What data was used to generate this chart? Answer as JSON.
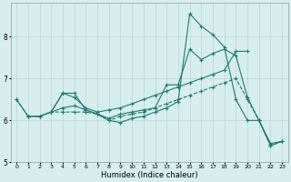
{
  "xlabel": "Humidex (Indice chaleur)",
  "bg_color": "#d6eeee",
  "line_color": "#1e7a70",
  "grid_color": "#b8d4d4",
  "xlim": [
    -0.5,
    23.5
  ],
  "ylim": [
    5.0,
    8.8
  ],
  "yticks": [
    5,
    6,
    7,
    8
  ],
  "xticks": [
    0,
    1,
    2,
    3,
    4,
    5,
    6,
    7,
    8,
    9,
    10,
    11,
    12,
    13,
    14,
    15,
    16,
    17,
    18,
    19,
    20,
    21,
    22,
    23
  ],
  "line1_x": [
    0,
    1,
    2,
    3,
    4,
    5,
    6,
    7,
    8,
    9,
    10,
    11,
    12,
    13,
    14,
    15,
    16,
    17,
    18,
    19,
    20,
    21,
    22,
    23
  ],
  "line1_y": [
    6.5,
    6.1,
    6.1,
    6.2,
    6.65,
    6.65,
    6.25,
    6.15,
    6.05,
    6.15,
    6.2,
    6.25,
    6.3,
    6.85,
    6.85,
    7.7,
    7.45,
    7.6,
    7.7,
    7.55,
    6.55,
    6.0,
    5.45,
    5.5
  ],
  "line2_x": [
    3,
    4,
    5,
    6,
    7,
    8,
    9,
    10,
    11,
    12,
    13,
    14,
    15,
    16,
    17,
    18,
    19,
    20
  ],
  "line2_y": [
    6.2,
    6.65,
    6.55,
    6.3,
    6.2,
    6.25,
    6.3,
    6.4,
    6.5,
    6.6,
    6.7,
    6.8,
    6.9,
    7.0,
    7.1,
    7.2,
    7.65,
    7.65
  ],
  "line3_x": [
    1,
    2,
    3,
    4,
    5,
    6,
    7,
    8,
    9,
    10,
    11,
    12,
    13,
    14,
    15,
    16,
    17,
    18,
    19,
    20,
    21,
    22,
    23
  ],
  "line3_y": [
    6.1,
    6.1,
    6.2,
    6.3,
    6.35,
    6.25,
    6.15,
    6.0,
    5.95,
    6.05,
    6.1,
    6.2,
    6.3,
    6.45,
    8.55,
    8.25,
    8.05,
    7.75,
    6.5,
    6.0,
    6.0,
    5.4,
    5.5
  ],
  "line4_x": [
    0,
    1,
    2,
    3,
    4,
    5,
    6,
    7,
    8,
    9,
    10,
    11,
    12,
    13,
    14,
    15,
    16,
    17,
    18,
    19,
    20,
    21,
    22,
    23
  ],
  "line4_y": [
    6.5,
    6.1,
    6.1,
    6.2,
    6.2,
    6.2,
    6.2,
    6.15,
    6.0,
    6.1,
    6.15,
    6.2,
    6.3,
    6.4,
    6.5,
    6.6,
    6.7,
    6.8,
    6.9,
    7.0,
    6.5,
    6.0,
    5.4,
    5.5
  ]
}
